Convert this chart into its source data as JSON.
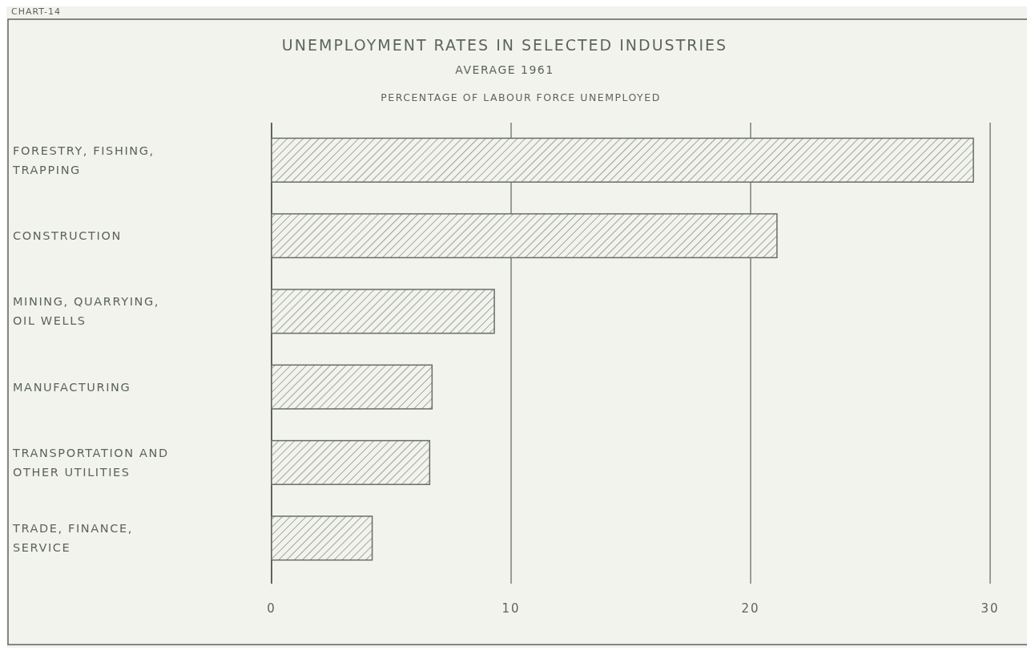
{
  "chart_data": {
    "type": "bar",
    "orientation": "horizontal",
    "title": "UNEMPLOYMENT RATES IN SELECTED INDUSTRIES",
    "subtitle": "AVERAGE 1961",
    "xlabel": "PERCENTAGE OF LABOUR FORCE UNEMPLOYED",
    "annotations": [
      "CHART-14"
    ],
    "categories": [
      "FORESTRY, FISHING,\nTRAPPING",
      "CONSTRUCTION",
      "MINING, QUARRYING,\nOIL WELLS",
      "MANUFACTURING",
      "TRANSPORTATION AND\nOTHER UTILITIES",
      "TRADE, FINANCE,\nSERVICE"
    ],
    "values": [
      29.3,
      21.1,
      9.3,
      6.7,
      6.6,
      4.2
    ],
    "color": "#666e6a",
    "xlim": [
      0,
      30
    ],
    "xticks": [
      0,
      10,
      20,
      30
    ],
    "grid": "x"
  }
}
